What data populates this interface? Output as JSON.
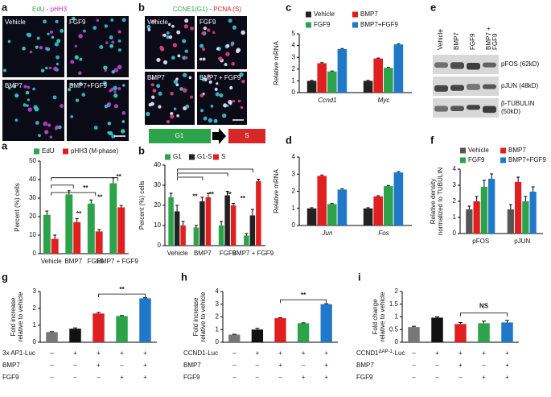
{
  "images": [
    {
      "panel": "a",
      "title": [
        {
          "text": "EdU",
          "color": "#2ca24a"
        },
        {
          "text": " - ",
          "color": "#222222"
        },
        {
          "text": "pHH3",
          "color": "#d020d0"
        }
      ],
      "tiles": [
        "Vehicle",
        "FGF9",
        "BMP7",
        "BMP7+FGF9"
      ]
    },
    {
      "panel": "b",
      "title": [
        {
          "text": "CCNE1(G1)",
          "color": "#2ca24a"
        },
        {
          "text": " - ",
          "color": "#222222"
        },
        {
          "text": "PCNA (S)",
          "color": "#e02020"
        }
      ],
      "tiles": [
        "Vehicle",
        "FGF9",
        "BMP7",
        "BMP7 + FGF9"
      ],
      "cycle": [
        "G1",
        "S"
      ]
    }
  ],
  "blot": {
    "panel": "e",
    "columns": [
      [
        "Vehicle"
      ],
      [
        "BMP7"
      ],
      [
        "FGF9"
      ],
      [
        "BMP7 +",
        "FGF9"
      ]
    ],
    "rows": [
      [
        "pFOS (62kD)"
      ],
      [
        "pJUN (48kD)"
      ],
      [
        "β-TUBULIN",
        "(50kD)"
      ]
    ]
  },
  "chart_data": [
    {
      "panel": "a",
      "type": "bar",
      "ylabel": "Percent (%) cells",
      "categories": [
        "Vehicle",
        "BMP7",
        "FGF9",
        "BMP7 + FGF9"
      ],
      "series": [
        {
          "name": "EdU",
          "color": "#2ca24a",
          "values": [
            21,
            32,
            27,
            38
          ],
          "errors": [
            2,
            2,
            2,
            3
          ]
        },
        {
          "name": "pHH3 (M-phase)",
          "color": "#e02020",
          "values": [
            8,
            17,
            12,
            25
          ],
          "errors": [
            2,
            2,
            1,
            1
          ]
        }
      ],
      "ylim": [
        0,
        50
      ],
      "yticks": [
        0,
        10,
        20,
        30,
        40,
        50
      ],
      "legend": true,
      "annotations": [
        "**",
        "**",
        "**",
        "**"
      ]
    },
    {
      "panel": "b",
      "type": "bar",
      "ylabel": "Percent (%) cells",
      "categories": [
        "Vehicle",
        "BMP7",
        "FGF9",
        "BMP7 + FGF9"
      ],
      "series": [
        {
          "name": "G1",
          "color": "#2ca24a",
          "values": [
            24,
            9,
            10,
            5
          ],
          "errors": [
            2,
            1,
            2,
            1
          ]
        },
        {
          "name": "G1-S",
          "color": "#222222",
          "values": [
            17,
            22,
            25,
            15
          ],
          "errors": [
            3,
            2,
            2,
            3
          ]
        },
        {
          "name": "S",
          "color": "#e02020",
          "values": [
            10,
            24,
            20,
            32
          ],
          "errors": [
            2,
            2,
            1,
            1
          ]
        }
      ],
      "ylim": [
        0,
        40
      ],
      "yticks": [
        0,
        10,
        20,
        30,
        40
      ],
      "legend": true,
      "annotations": [
        "**",
        "**",
        "**",
        "**"
      ]
    },
    {
      "panel": "c",
      "type": "bar",
      "ylabel": "Relative mRNA",
      "categories": [
        "Ccnd1",
        "Myc"
      ],
      "series": [
        {
          "name": "Vehicle",
          "color": "#222222",
          "values": [
            1,
            1
          ],
          "errors": [
            0.04,
            0.04
          ]
        },
        {
          "name": "BMP7",
          "color": "#e02020",
          "values": [
            2.5,
            2.9
          ],
          "errors": [
            0.05,
            0.04
          ]
        },
        {
          "name": "FGF9",
          "color": "#2ca24a",
          "values": [
            1.8,
            2.1
          ],
          "errors": [
            0.04,
            0.05
          ]
        },
        {
          "name": "BMP7+FGF9",
          "color": "#1f78c8",
          "values": [
            3.7,
            4.1
          ],
          "errors": [
            0.05,
            0.05
          ]
        }
      ],
      "ylim": [
        0,
        5
      ],
      "yticks": [
        0,
        1,
        2,
        3,
        4,
        5
      ],
      "legend": true
    },
    {
      "panel": "d",
      "type": "bar",
      "ylabel": "Relative mRNA",
      "categories": [
        "Jun",
        "Fos"
      ],
      "series": [
        {
          "name": "Vehicle",
          "color": "#222222",
          "values": [
            1,
            1
          ],
          "errors": [
            0.04,
            0.04
          ]
        },
        {
          "name": "BMP7",
          "color": "#e02020",
          "values": [
            2.9,
            1.7
          ],
          "errors": [
            0.05,
            0.04
          ]
        },
        {
          "name": "FGF9",
          "color": "#2ca24a",
          "values": [
            1.25,
            2.3
          ],
          "errors": [
            0.04,
            0.04
          ]
        },
        {
          "name": "BMP7+FGF9",
          "color": "#1f78c8",
          "values": [
            2.1,
            3.1
          ],
          "errors": [
            0.04,
            0.05
          ]
        }
      ],
      "ylim": [
        0,
        4
      ],
      "yticks": [
        0,
        1,
        2,
        3,
        4
      ],
      "legend": false
    },
    {
      "panel": "f",
      "type": "bar",
      "ylabel": [
        "Relative density",
        "normalized to TUBULIN"
      ],
      "categories": [
        "pFOS",
        "pJUN"
      ],
      "series": [
        {
          "name": "Vehicle",
          "color": "#555555",
          "values": [
            1.5,
            1.5
          ],
          "errors": [
            0.2,
            0.3
          ]
        },
        {
          "name": "BMP7",
          "color": "#e02020",
          "values": [
            2.0,
            3.2
          ],
          "errors": [
            0.3,
            0.3
          ]
        },
        {
          "name": "FGF9",
          "color": "#2ca24a",
          "values": [
            2.9,
            2.0
          ],
          "errors": [
            0.4,
            0.3
          ]
        },
        {
          "name": "BMP7+FGF9",
          "color": "#1f78c8",
          "values": [
            3.4,
            2.6
          ],
          "errors": [
            0.3,
            0.3
          ]
        }
      ],
      "ylim": [
        0,
        4
      ],
      "yticks": [
        0,
        1,
        2,
        3,
        4
      ],
      "legend": true
    },
    {
      "panel": "g",
      "type": "bar",
      "ylabel": [
        "Fold increase",
        "relative to vehicle"
      ],
      "values": [
        0.6,
        0.8,
        1.7,
        1.55,
        2.6
      ],
      "errors": [
        0.03,
        0.05,
        0.06,
        0.03,
        0.03
      ],
      "colors": [
        "#777777",
        "#111111",
        "#e02020",
        "#2ca24a",
        "#1f78c8"
      ],
      "ylim": [
        0,
        3
      ],
      "yticks": [
        0,
        1,
        2,
        3
      ],
      "annotations": [
        "**"
      ],
      "rows": [
        {
          "label": "3x AP1-Luc",
          "signs": [
            "–",
            "+",
            "+",
            "+",
            "+"
          ]
        },
        {
          "label": "BMP7",
          "signs": [
            "–",
            "–",
            "+",
            "–",
            "+"
          ]
        },
        {
          "label": "FGF9",
          "signs": [
            "–",
            "–",
            "–",
            "+",
            "+"
          ]
        }
      ]
    },
    {
      "panel": "h",
      "type": "bar",
      "ylabel": [
        "Fold increase",
        "relative to vehicle"
      ],
      "values": [
        0.6,
        1.0,
        1.9,
        1.5,
        3.0
      ],
      "errors": [
        0.03,
        0.1,
        0.03,
        0.03,
        0.04
      ],
      "colors": [
        "#777777",
        "#111111",
        "#e02020",
        "#2ca24a",
        "#1f78c8"
      ],
      "ylim": [
        0,
        4
      ],
      "yticks": [
        0,
        1,
        2,
        3,
        4
      ],
      "annotations": [
        "**"
      ],
      "rows": [
        {
          "label": "CCND1-Luc",
          "signs": [
            "–",
            "+",
            "+",
            "+",
            "+"
          ]
        },
        {
          "label": "BMP7",
          "signs": [
            "–",
            "–",
            "+",
            "–",
            "+"
          ]
        },
        {
          "label": "FGF9",
          "signs": [
            "–",
            "–",
            "–",
            "+",
            "+"
          ]
        }
      ]
    },
    {
      "panel": "i",
      "type": "bar",
      "ylabel": [
        "Fold change",
        "relative to vehicle"
      ],
      "values": [
        0.6,
        0.97,
        0.72,
        0.75,
        0.78
      ],
      "errors": [
        0.03,
        0.03,
        0.06,
        0.08,
        0.08
      ],
      "colors": [
        "#777777",
        "#111111",
        "#e02020",
        "#2ca24a",
        "#1f78c8"
      ],
      "ylim": [
        0,
        2
      ],
      "yticks": [
        0,
        0.5,
        1,
        1.5,
        2
      ],
      "annotations": [
        "NS"
      ],
      "rows": [
        {
          "label": "CCND1",
          "label_sup": "ΔAP-1",
          "label_suffix": "-Luc",
          "signs": [
            "–",
            "+",
            "+",
            "+",
            "+"
          ]
        },
        {
          "label": "BMP7",
          "signs": [
            "–",
            "–",
            "+",
            "–",
            "+"
          ]
        },
        {
          "label": "FGF9",
          "signs": [
            "–",
            "–",
            "–",
            "+",
            "+"
          ]
        }
      ]
    }
  ]
}
